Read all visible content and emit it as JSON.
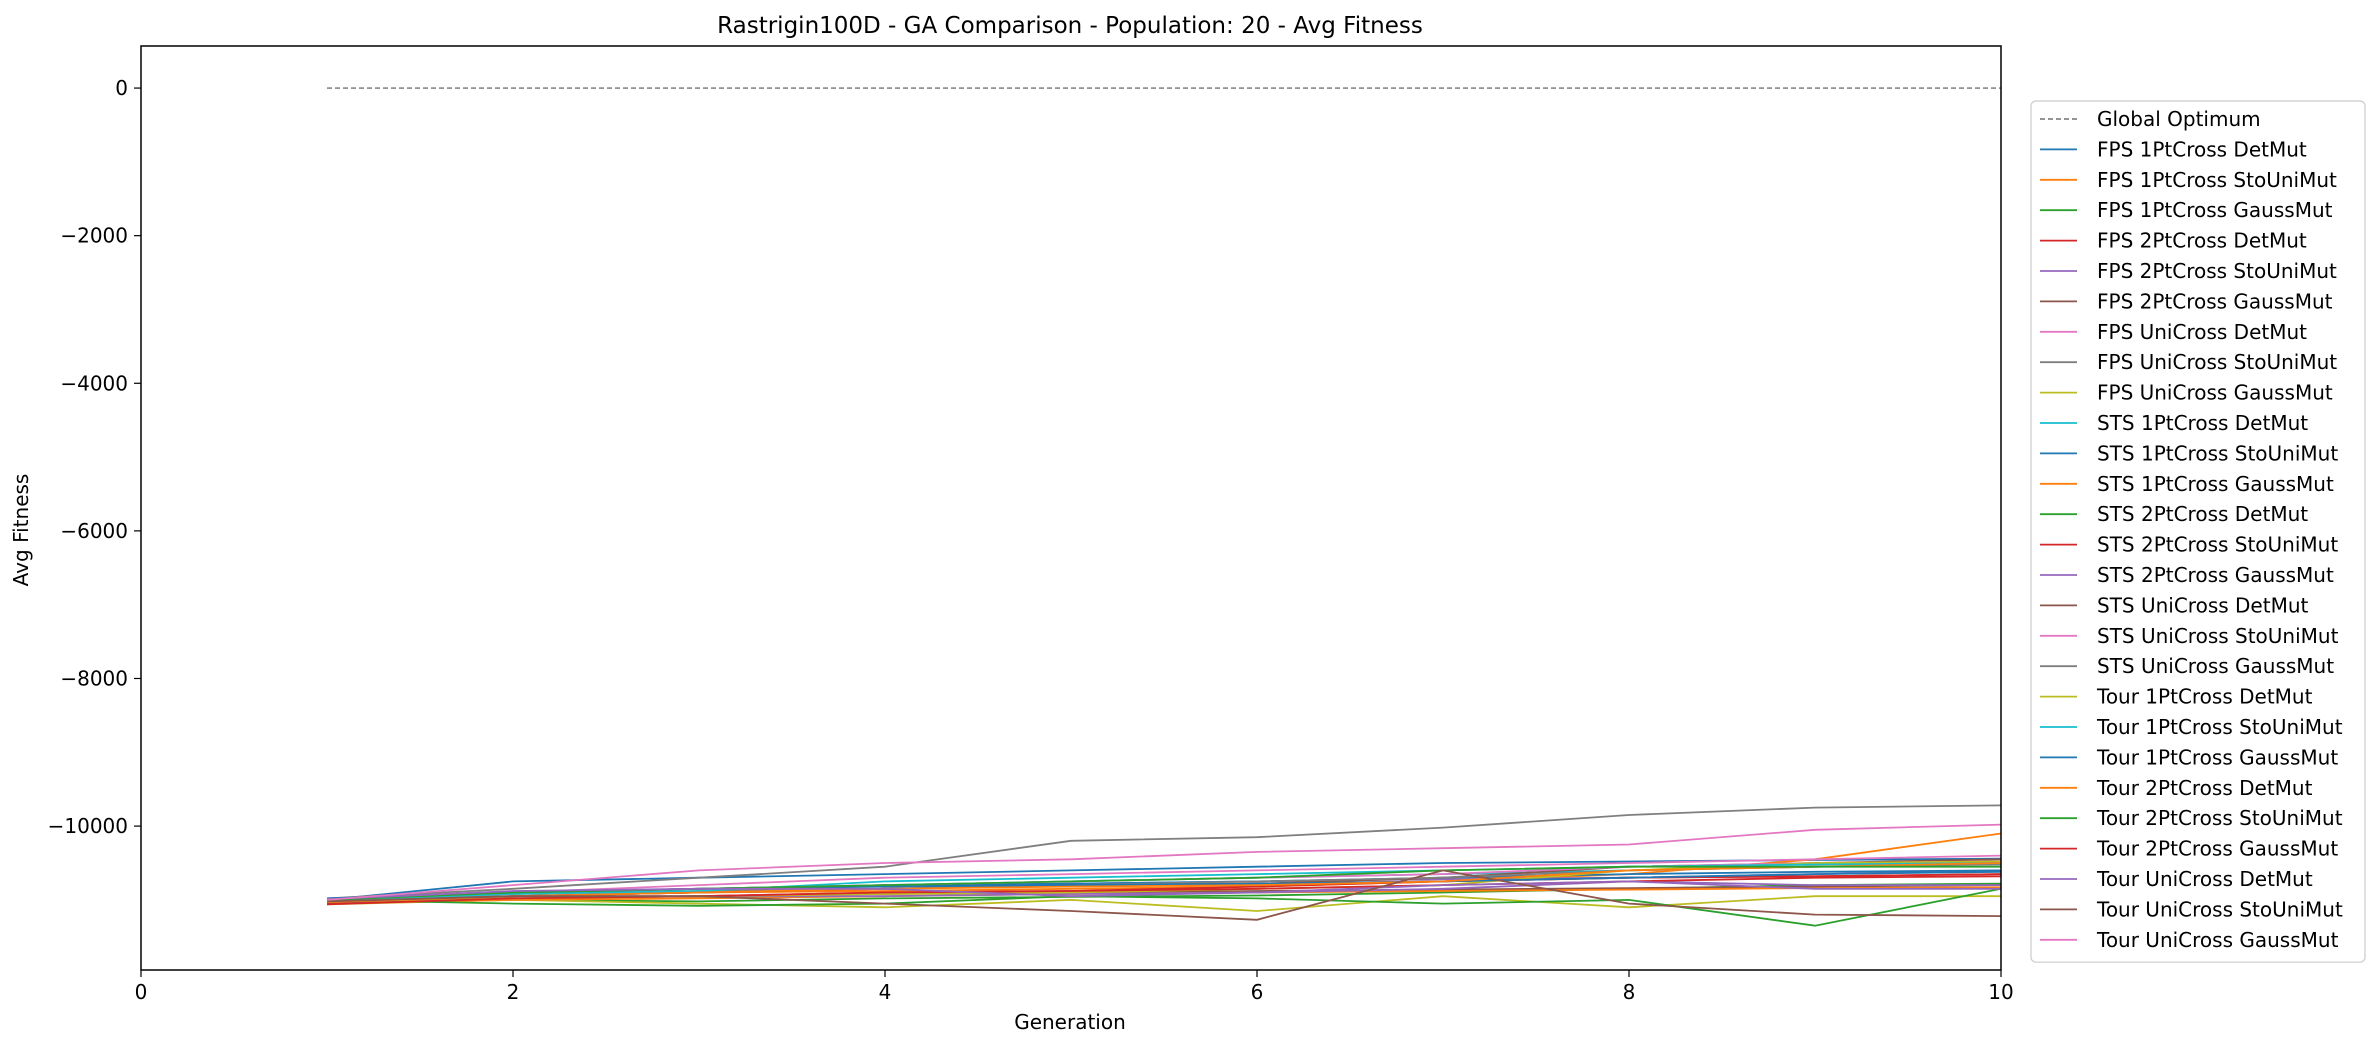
{
  "chart_data": {
    "type": "line",
    "title": "Rastrigin100D - GA Comparison - Population: 20 - Avg Fitness",
    "xlabel": "Generation",
    "ylabel": "Avg Fitness",
    "xlim": [
      0,
      10
    ],
    "ylim": [
      -11950,
      570
    ],
    "xticks": [
      0,
      2,
      4,
      6,
      8,
      10
    ],
    "yticks": [
      0,
      -2000,
      -4000,
      -6000,
      -8000,
      -10000
    ],
    "xtick_labels": [
      "0",
      "2",
      "4",
      "6",
      "8",
      "10"
    ],
    "ytick_labels": [
      "0",
      "−2000",
      "−4000",
      "−6000",
      "−8000",
      "−10000"
    ],
    "grid": false,
    "legend_position": "right, outside plot",
    "x": [
      1,
      2,
      3,
      4,
      5,
      6,
      7,
      8,
      9,
      10
    ],
    "reference": {
      "name": "Global Optimum",
      "y": 0,
      "x": [
        1,
        10
      ],
      "color": "#555555",
      "style": "dashed"
    },
    "series": [
      {
        "name": "FPS 1PtCross DetMut",
        "color": "#1f77b4",
        "values": [
          -11000,
          -10750,
          -10700,
          -10650,
          -10600,
          -10550,
          -10500,
          -10480,
          -10460,
          -10440
        ]
      },
      {
        "name": "FPS 1PtCross StoUniMut",
        "color": "#ff7f0e",
        "values": [
          -11020,
          -10950,
          -10900,
          -10880,
          -10850,
          -10820,
          -10750,
          -10650,
          -10450,
          -10100
        ]
      },
      {
        "name": "FPS 1PtCross GaussMut",
        "color": "#2ca02c",
        "values": [
          -11050,
          -11000,
          -11020,
          -10980,
          -10960,
          -10940,
          -10900,
          -10850,
          -10800,
          -10780
        ]
      },
      {
        "name": "FPS 2PtCross DetMut",
        "color": "#d62728",
        "values": [
          -11050,
          -10980,
          -10950,
          -10900,
          -10880,
          -10820,
          -10750,
          -10700,
          -10680,
          -10650
        ]
      },
      {
        "name": "FPS 2PtCross StoUniMut",
        "color": "#9467bd",
        "values": [
          -11000,
          -10900,
          -10850,
          -10800,
          -10780,
          -10750,
          -10720,
          -10700,
          -10650,
          -10600
        ]
      },
      {
        "name": "FPS 2PtCross GaussMut",
        "color": "#8c564b",
        "values": [
          -11030,
          -10980,
          -10950,
          -10920,
          -10900,
          -10880,
          -10860,
          -10840,
          -10820,
          -10800
        ]
      },
      {
        "name": "FPS UniCross DetMut",
        "color": "#e377c2",
        "values": [
          -11000,
          -10900,
          -10800,
          -10700,
          -10650,
          -10600,
          -10550,
          -10500,
          -10450,
          -10400
        ]
      },
      {
        "name": "FPS UniCross StoUniMut",
        "color": "#7f7f7f",
        "values": [
          -10980,
          -10850,
          -10700,
          -10550,
          -10200,
          -10150,
          -10020,
          -9850,
          -9750,
          -9720
        ]
      },
      {
        "name": "FPS UniCross GaussMut",
        "color": "#bcbd22",
        "values": [
          -11060,
          -11000,
          -11050,
          -11100,
          -11000,
          -11150,
          -10950,
          -11100,
          -10950,
          -10950
        ]
      },
      {
        "name": "STS 1PtCross DetMut",
        "color": "#17becf",
        "values": [
          -11000,
          -10950,
          -10900,
          -10800,
          -10750,
          -10700,
          -10650,
          -10600,
          -10550,
          -10500
        ]
      },
      {
        "name": "STS 1PtCross StoUniMut",
        "color": "#1f77b4",
        "values": [
          -10980,
          -10900,
          -10850,
          -10800,
          -10780,
          -10750,
          -10700,
          -10650,
          -10620,
          -10600
        ]
      },
      {
        "name": "STS 1PtCross GaussMut",
        "color": "#ff7f0e",
        "values": [
          -11050,
          -11000,
          -10980,
          -10950,
          -10920,
          -10900,
          -10880,
          -10860,
          -10840,
          -10830
        ]
      },
      {
        "name": "STS 2PtCross DetMut",
        "color": "#2ca02c",
        "values": [
          -11000,
          -11050,
          -11080,
          -11050,
          -10950,
          -10980,
          -11050,
          -11000,
          -11350,
          -10850
        ]
      },
      {
        "name": "STS 2PtCross StoUniMut",
        "color": "#d62728",
        "values": [
          -11020,
          -10950,
          -10900,
          -10850,
          -10800,
          -10780,
          -10750,
          -10700,
          -10680,
          -10650
        ]
      },
      {
        "name": "STS 2PtCross GaussMut",
        "color": "#9467bd",
        "values": [
          -11000,
          -10950,
          -10950,
          -10950,
          -10920,
          -10900,
          -10850,
          -10750,
          -10800,
          -10800
        ]
      },
      {
        "name": "STS UniCross DetMut",
        "color": "#8c564b",
        "values": [
          -11040,
          -10950,
          -10900,
          -10850,
          -10800,
          -10780,
          -10700,
          -10550,
          -10500,
          -10450
        ]
      },
      {
        "name": "STS UniCross StoUniMut",
        "color": "#e377c2",
        "values": [
          -10990,
          -10900,
          -10850,
          -10800,
          -10750,
          -10700,
          -10650,
          -10550,
          -10500,
          -10480
        ]
      },
      {
        "name": "STS UniCross GaussMut",
        "color": "#7f7f7f",
        "values": [
          -11010,
          -10920,
          -10880,
          -10850,
          -10800,
          -10750,
          -10700,
          -10600,
          -10550,
          -10520
        ]
      },
      {
        "name": "Tour 1PtCross DetMut",
        "color": "#bcbd22",
        "values": [
          -11020,
          -10980,
          -10950,
          -10920,
          -10900,
          -10850,
          -10800,
          -10600,
          -10500,
          -10480
        ]
      },
      {
        "name": "Tour 1PtCross StoUniMut",
        "color": "#17becf",
        "values": [
          -11000,
          -10920,
          -10880,
          -10750,
          -10700,
          -10650,
          -10600,
          -10550,
          -10520,
          -10500
        ]
      },
      {
        "name": "Tour 1PtCross GaussMut",
        "color": "#1f77b4",
        "values": [
          -10980,
          -10900,
          -10850,
          -10820,
          -10800,
          -10780,
          -10750,
          -10700,
          -10650,
          -10620
        ]
      },
      {
        "name": "Tour 2PtCross DetMut",
        "color": "#ff7f0e",
        "values": [
          -11030,
          -10950,
          -10900,
          -10850,
          -10820,
          -10800,
          -10750,
          -10600,
          -10550,
          -10500
        ]
      },
      {
        "name": "Tour 2PtCross StoUniMut",
        "color": "#2ca02c",
        "values": [
          -11000,
          -10900,
          -10850,
          -10800,
          -10750,
          -10700,
          -10600,
          -10550,
          -10550,
          -10550
        ]
      },
      {
        "name": "Tour 2PtCross GaussMut",
        "color": "#d62728",
        "values": [
          -11060,
          -10980,
          -10950,
          -10900,
          -10880,
          -10850,
          -10800,
          -10750,
          -10700,
          -10680
        ]
      },
      {
        "name": "Tour UniCross DetMut",
        "color": "#9467bd",
        "values": [
          -10990,
          -10880,
          -10850,
          -10850,
          -10950,
          -10900,
          -10800,
          -10750,
          -10850,
          -10850
        ]
      },
      {
        "name": "Tour UniCross StoUniMut",
        "color": "#8c564b",
        "values": [
          -11020,
          -10950,
          -10950,
          -11050,
          -11150,
          -11270,
          -10600,
          -11050,
          -11200,
          -11220
        ]
      },
      {
        "name": "Tour UniCross GaussMut",
        "color": "#e377c2",
        "values": [
          -11000,
          -10800,
          -10600,
          -10500,
          -10450,
          -10350,
          -10300,
          -10250,
          -10050,
          -9980
        ]
      }
    ]
  }
}
